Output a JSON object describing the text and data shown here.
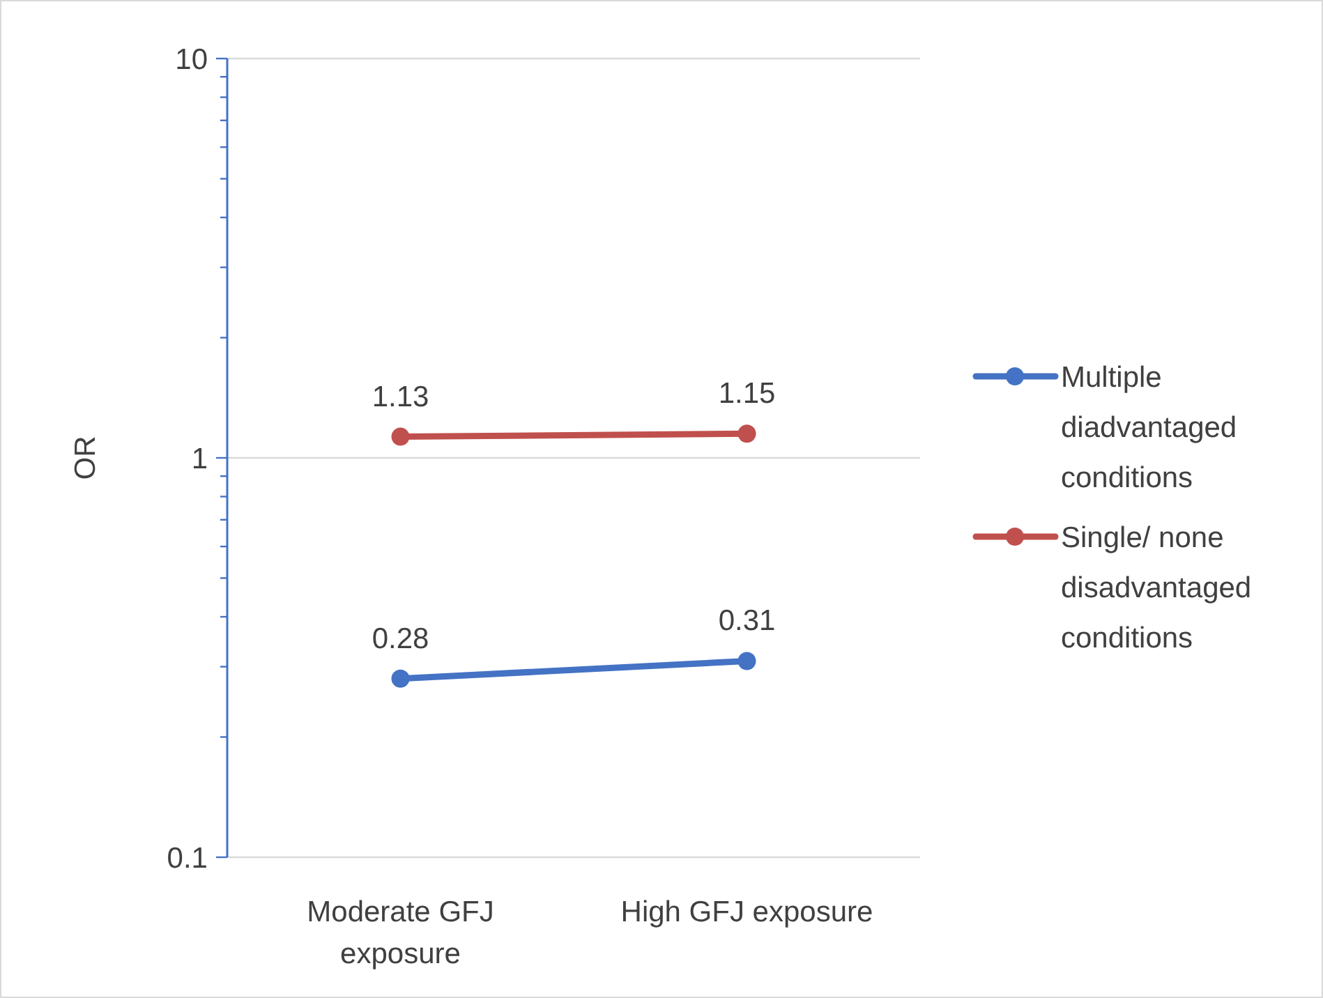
{
  "chart_data": {
    "type": "line",
    "ylabel": "OR",
    "categories": [
      "Moderate GFJ exposure",
      "High GFJ exposure"
    ],
    "series": [
      {
        "name": "Multiple diadvantaged conditions",
        "color": "#4472c4",
        "values": [
          0.28,
          0.31
        ]
      },
      {
        "name": "Single/ none disadvantaged conditions",
        "color": "#c0504d",
        "values": [
          1.13,
          1.15
        ]
      }
    ],
    "log": true,
    "ylim": [
      0.1,
      10
    ],
    "yticks": [
      0.1,
      {
        "value": 0.2,
        "label": null
      },
      {
        "value": 0.3,
        "label": null
      },
      {
        "value": 0.4,
        "label": null
      },
      {
        "value": 0.5,
        "label": null
      },
      {
        "value": 0.6,
        "label": null
      },
      {
        "value": 0.7,
        "label": null
      },
      {
        "value": 0.8,
        "label": null
      },
      {
        "value": 0.9,
        "label": null
      },
      1,
      {
        "value": 2,
        "label": null
      },
      {
        "value": 3,
        "label": null
      },
      {
        "value": 4,
        "label": null
      },
      {
        "value": 5,
        "label": null
      },
      {
        "value": 6,
        "label": null
      },
      {
        "value": 7,
        "label": null
      },
      {
        "value": 8,
        "label": null
      },
      {
        "value": 9,
        "label": null
      },
      10
    ],
    "grid": "y",
    "legend": "right",
    "marker": "circle",
    "line_style": "solid",
    "data_labels": true
  }
}
